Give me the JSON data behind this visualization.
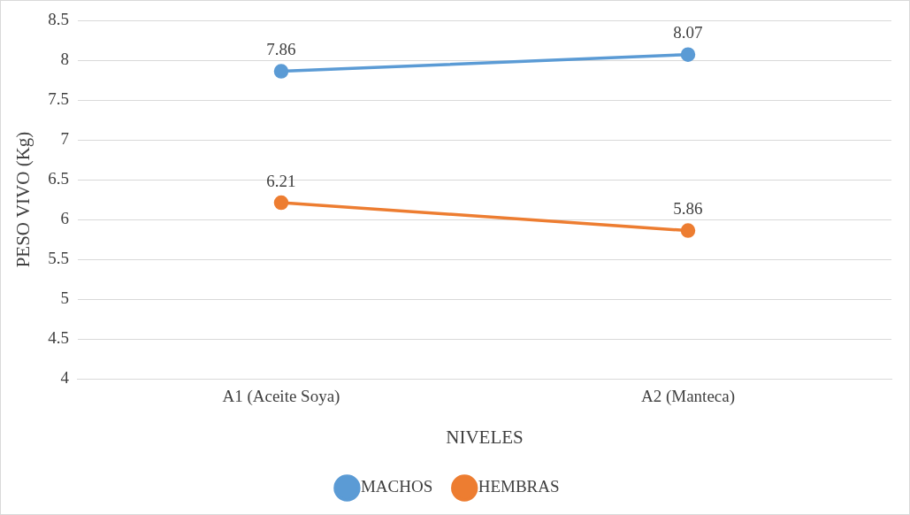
{
  "chart_data": {
    "type": "line",
    "xlabel": "NIVELES",
    "ylabel": "PESO VIVO (Kg)",
    "categories": [
      "A1 (Aceite Soya)",
      "A2 (Manteca)"
    ],
    "series": [
      {
        "name": "MACHOS",
        "color": "#5b9bd5",
        "values": [
          7.86,
          8.07
        ]
      },
      {
        "name": "HEMBRAS",
        "color": "#ed7d31",
        "values": [
          6.21,
          5.86
        ]
      }
    ],
    "ylim": [
      4,
      8.5
    ],
    "yticks": [
      4,
      4.5,
      5,
      5.5,
      6,
      6.5,
      7,
      7.5,
      8,
      8.5
    ],
    "grid": "y",
    "legend": "bottom",
    "marker": "circle",
    "line_style": "solid",
    "data_labels": true
  }
}
